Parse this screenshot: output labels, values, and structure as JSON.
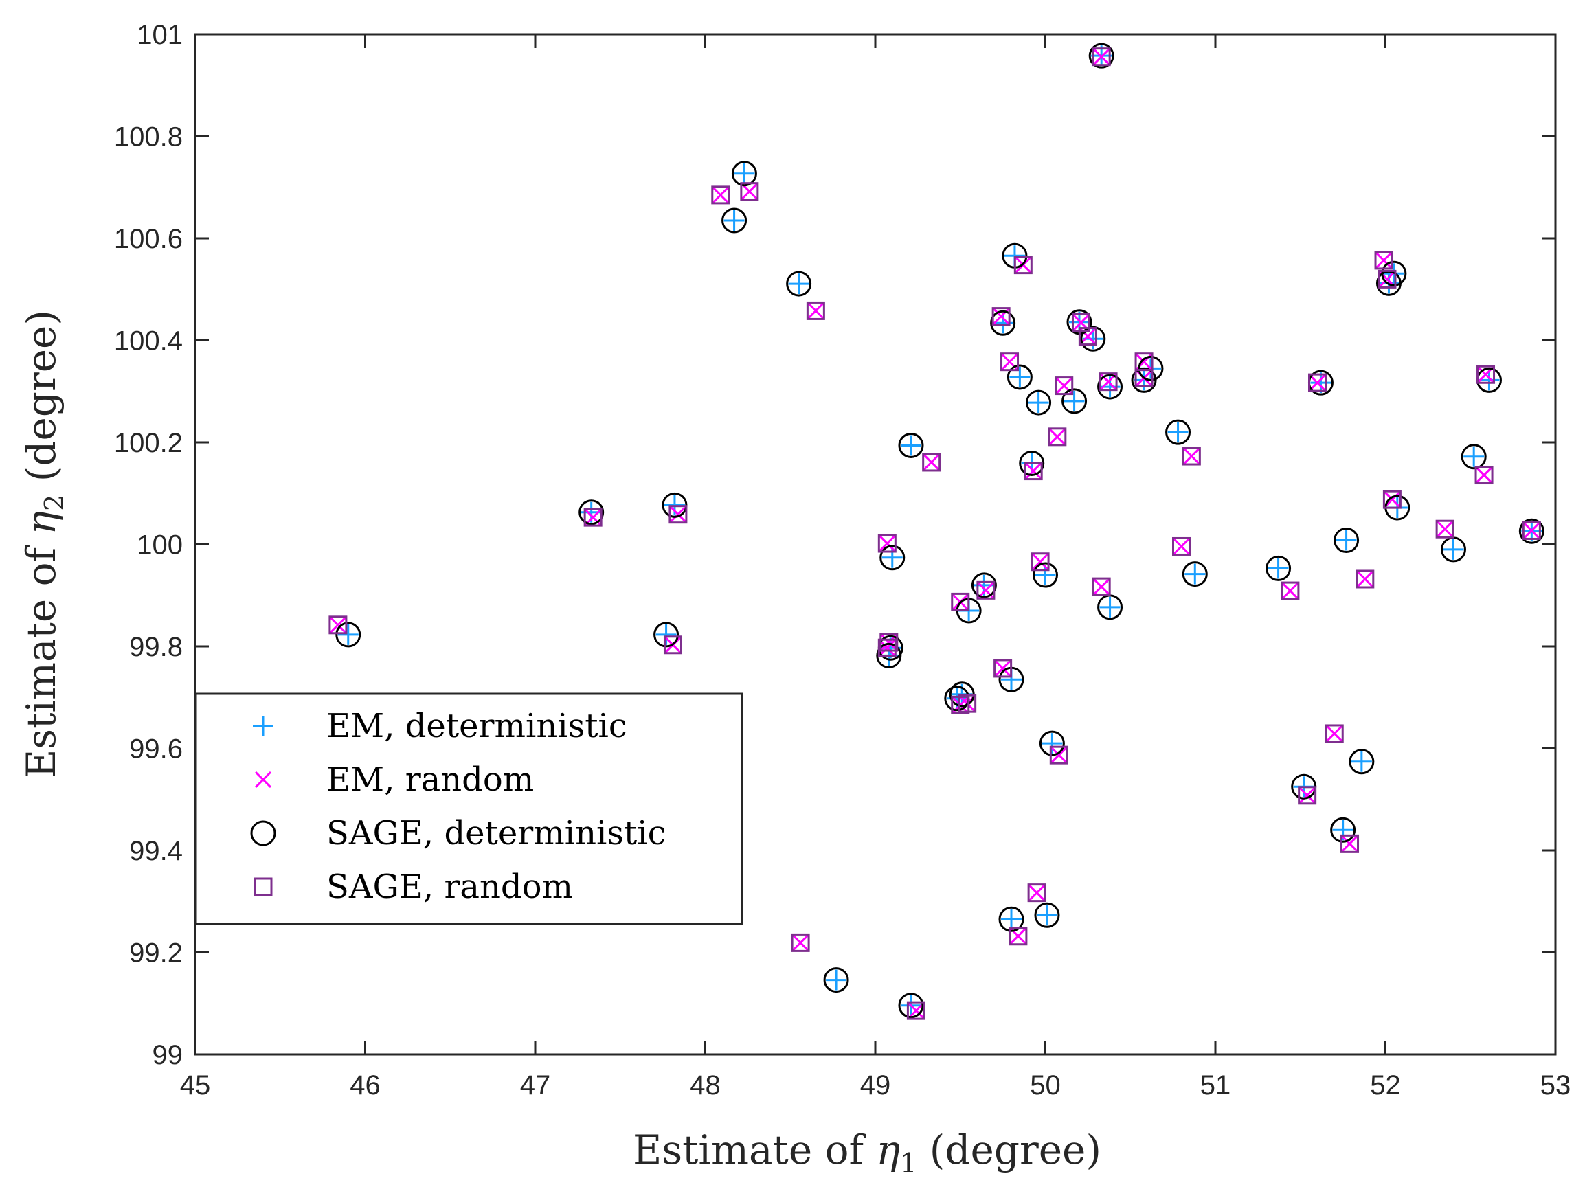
{
  "chart_data": {
    "type": "scatter",
    "xlabel": {
      "prefix": "Estimate of ",
      "symbol": "η",
      "sub": "1",
      "suffix": " (degree)"
    },
    "ylabel": {
      "prefix": "Estimate of ",
      "symbol": "η",
      "sub": "2",
      "suffix": " (degree)"
    },
    "xlim": [
      45,
      53
    ],
    "ylim": [
      99,
      101
    ],
    "xticks": [
      "45",
      "46",
      "47",
      "48",
      "49",
      "50",
      "51",
      "52",
      "53"
    ],
    "yticks": [
      "99",
      "99.2",
      "99.4",
      "99.6",
      "99.8",
      "100",
      "100.2",
      "100.4",
      "100.6",
      "100.8",
      "101"
    ],
    "grid": false,
    "legend_position": "lower-left",
    "colors": {
      "em_det": "#1a9fff",
      "em_rand": "#ff00ff",
      "sage_det": "#000000",
      "sage_rand": "#7e2f8e"
    },
    "series": [
      {
        "name": "EM, deterministic",
        "marker": "plus",
        "points": [
          [
            45.9,
            99.823
          ],
          [
            47.33,
            100.063
          ],
          [
            47.82,
            100.077
          ],
          [
            47.77,
            99.823
          ],
          [
            48.23,
            100.727
          ],
          [
            48.17,
            100.635
          ],
          [
            48.55,
            100.511
          ],
          [
            49.21,
            100.194
          ],
          [
            49.1,
            99.974
          ],
          [
            49.08,
            99.782
          ],
          [
            49.09,
            99.797
          ],
          [
            49.48,
            99.698
          ],
          [
            49.51,
            99.706
          ],
          [
            49.55,
            99.87
          ],
          [
            49.64,
            99.92
          ],
          [
            49.75,
            100.434
          ],
          [
            49.8,
            99.735
          ],
          [
            49.82,
            100.566
          ],
          [
            49.85,
            100.328
          ],
          [
            49.92,
            100.159
          ],
          [
            49.96,
            100.278
          ],
          [
            50.0,
            99.94
          ],
          [
            50.04,
            99.61
          ],
          [
            50.2,
            100.436
          ],
          [
            50.17,
            100.281
          ],
          [
            50.28,
            100.403
          ],
          [
            50.38,
            100.309
          ],
          [
            50.38,
            99.877
          ],
          [
            50.33,
            100.958
          ],
          [
            50.58,
            100.322
          ],
          [
            50.62,
            100.345
          ],
          [
            50.78,
            100.22
          ],
          [
            50.88,
            99.942
          ],
          [
            49.8,
            99.265
          ],
          [
            50.01,
            99.273
          ],
          [
            48.77,
            99.146
          ],
          [
            49.21,
            99.096
          ],
          [
            51.37,
            99.953
          ],
          [
            51.52,
            99.525
          ],
          [
            51.62,
            100.317
          ],
          [
            51.77,
            100.008
          ],
          [
            51.75,
            99.44
          ],
          [
            51.86,
            99.574
          ],
          [
            52.02,
            100.512
          ],
          [
            52.05,
            100.531
          ],
          [
            52.07,
            100.072
          ],
          [
            52.4,
            99.99
          ],
          [
            52.52,
            100.172
          ],
          [
            52.61,
            100.322
          ],
          [
            52.86,
            100.026
          ]
        ]
      },
      {
        "name": "EM, random",
        "marker": "x",
        "points": [
          [
            45.84,
            99.842
          ],
          [
            47.34,
            100.053
          ],
          [
            47.84,
            100.059
          ],
          [
            47.81,
            99.803
          ],
          [
            48.09,
            100.685
          ],
          [
            48.26,
            100.692
          ],
          [
            48.65,
            100.458
          ],
          [
            48.56,
            99.219
          ],
          [
            49.07,
            100.002
          ],
          [
            49.07,
            99.797
          ],
          [
            49.08,
            99.808
          ],
          [
            49.33,
            100.161
          ],
          [
            49.24,
            99.086
          ],
          [
            49.5,
            99.685
          ],
          [
            49.54,
            99.688
          ],
          [
            49.5,
            99.887
          ],
          [
            49.65,
            99.91
          ],
          [
            49.74,
            100.447
          ],
          [
            49.75,
            99.757
          ],
          [
            49.79,
            100.358
          ],
          [
            49.87,
            100.548
          ],
          [
            49.93,
            100.144
          ],
          [
            49.97,
            99.966
          ],
          [
            49.95,
            99.317
          ],
          [
            49.84,
            99.232
          ],
          [
            50.07,
            100.211
          ],
          [
            50.08,
            99.587
          ],
          [
            50.11,
            100.311
          ],
          [
            50.21,
            100.435
          ],
          [
            50.25,
            100.408
          ],
          [
            50.33,
            99.917
          ],
          [
            50.33,
            100.956
          ],
          [
            50.37,
            100.319
          ],
          [
            50.58,
            100.358
          ],
          [
            50.58,
            100.326
          ],
          [
            50.8,
            99.996
          ],
          [
            50.86,
            100.173
          ],
          [
            51.44,
            99.909
          ],
          [
            51.54,
            99.508
          ],
          [
            51.6,
            100.317
          ],
          [
            51.7,
            99.629
          ],
          [
            51.79,
            99.413
          ],
          [
            51.88,
            99.932
          ],
          [
            51.99,
            100.557
          ],
          [
            52.01,
            100.52
          ],
          [
            52.04,
            100.088
          ],
          [
            52.35,
            100.03
          ],
          [
            52.58,
            100.136
          ],
          [
            52.59,
            100.333
          ],
          [
            52.86,
            100.027
          ]
        ]
      },
      {
        "name": "SAGE, deterministic",
        "marker": "circle",
        "points": [
          [
            45.9,
            99.823
          ],
          [
            47.33,
            100.063
          ],
          [
            47.82,
            100.077
          ],
          [
            47.77,
            99.823
          ],
          [
            48.23,
            100.727
          ],
          [
            48.17,
            100.635
          ],
          [
            48.55,
            100.511
          ],
          [
            49.21,
            100.194
          ],
          [
            49.1,
            99.974
          ],
          [
            49.08,
            99.782
          ],
          [
            49.09,
            99.797
          ],
          [
            49.48,
            99.698
          ],
          [
            49.51,
            99.706
          ],
          [
            49.55,
            99.87
          ],
          [
            49.64,
            99.92
          ],
          [
            49.75,
            100.434
          ],
          [
            49.8,
            99.735
          ],
          [
            49.82,
            100.566
          ],
          [
            49.85,
            100.328
          ],
          [
            49.92,
            100.159
          ],
          [
            49.96,
            100.278
          ],
          [
            50.0,
            99.94
          ],
          [
            50.04,
            99.61
          ],
          [
            50.2,
            100.436
          ],
          [
            50.17,
            100.281
          ],
          [
            50.28,
            100.403
          ],
          [
            50.38,
            100.309
          ],
          [
            50.38,
            99.877
          ],
          [
            50.33,
            100.958
          ],
          [
            50.58,
            100.322
          ],
          [
            50.62,
            100.345
          ],
          [
            50.78,
            100.22
          ],
          [
            50.88,
            99.942
          ],
          [
            49.8,
            99.265
          ],
          [
            50.01,
            99.273
          ],
          [
            48.77,
            99.146
          ],
          [
            49.21,
            99.096
          ],
          [
            51.37,
            99.953
          ],
          [
            51.52,
            99.525
          ],
          [
            51.62,
            100.317
          ],
          [
            51.77,
            100.008
          ],
          [
            51.75,
            99.44
          ],
          [
            51.86,
            99.574
          ],
          [
            52.02,
            100.512
          ],
          [
            52.05,
            100.531
          ],
          [
            52.07,
            100.072
          ],
          [
            52.4,
            99.99
          ],
          [
            52.52,
            100.172
          ],
          [
            52.61,
            100.322
          ],
          [
            52.86,
            100.026
          ]
        ]
      },
      {
        "name": "SAGE, random",
        "marker": "square",
        "points": [
          [
            45.84,
            99.842
          ],
          [
            47.34,
            100.053
          ],
          [
            47.84,
            100.059
          ],
          [
            47.81,
            99.803
          ],
          [
            48.09,
            100.685
          ],
          [
            48.26,
            100.692
          ],
          [
            48.65,
            100.458
          ],
          [
            48.56,
            99.219
          ],
          [
            49.07,
            100.002
          ],
          [
            49.07,
            99.797
          ],
          [
            49.08,
            99.808
          ],
          [
            49.33,
            100.161
          ],
          [
            49.24,
            99.086
          ],
          [
            49.5,
            99.685
          ],
          [
            49.54,
            99.688
          ],
          [
            49.5,
            99.887
          ],
          [
            49.65,
            99.91
          ],
          [
            49.74,
            100.447
          ],
          [
            49.75,
            99.757
          ],
          [
            49.79,
            100.358
          ],
          [
            49.87,
            100.548
          ],
          [
            49.93,
            100.144
          ],
          [
            49.97,
            99.966
          ],
          [
            49.95,
            99.317
          ],
          [
            49.84,
            99.232
          ],
          [
            50.07,
            100.211
          ],
          [
            50.08,
            99.587
          ],
          [
            50.11,
            100.311
          ],
          [
            50.21,
            100.435
          ],
          [
            50.25,
            100.408
          ],
          [
            50.33,
            99.917
          ],
          [
            50.33,
            100.956
          ],
          [
            50.37,
            100.319
          ],
          [
            50.58,
            100.358
          ],
          [
            50.58,
            100.326
          ],
          [
            50.8,
            99.996
          ],
          [
            50.86,
            100.173
          ],
          [
            51.44,
            99.909
          ],
          [
            51.54,
            99.508
          ],
          [
            51.6,
            100.317
          ],
          [
            51.7,
            99.629
          ],
          [
            51.79,
            99.413
          ],
          [
            51.88,
            99.932
          ],
          [
            51.99,
            100.557
          ],
          [
            52.01,
            100.52
          ],
          [
            52.04,
            100.088
          ],
          [
            52.35,
            100.03
          ],
          [
            52.58,
            100.136
          ],
          [
            52.59,
            100.333
          ],
          [
            52.86,
            100.027
          ]
        ]
      }
    ]
  }
}
